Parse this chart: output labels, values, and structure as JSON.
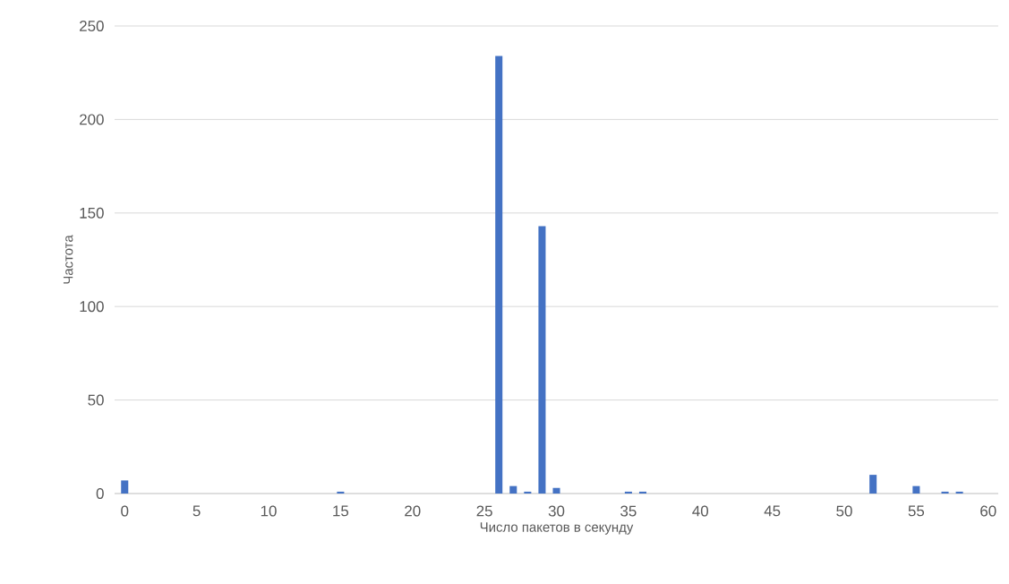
{
  "chart_data": {
    "type": "bar",
    "xlabel": "Число пакетов в секунду",
    "ylabel": "Частота",
    "x": [
      0,
      15,
      26,
      27,
      28,
      29,
      30,
      35,
      36,
      52,
      55,
      57,
      58
    ],
    "values": [
      7,
      1,
      234,
      4,
      1,
      143,
      3,
      1,
      1,
      10,
      4,
      1,
      1
    ],
    "color": "#4472c4",
    "xlim": [
      -0.7,
      60.7
    ],
    "xticks": [
      0,
      5,
      10,
      15,
      20,
      25,
      30,
      35,
      40,
      45,
      50,
      55,
      60
    ],
    "ylim": [
      0,
      250
    ],
    "yticks": [
      0,
      50,
      100,
      150,
      200,
      250
    ],
    "grid": "y"
  }
}
